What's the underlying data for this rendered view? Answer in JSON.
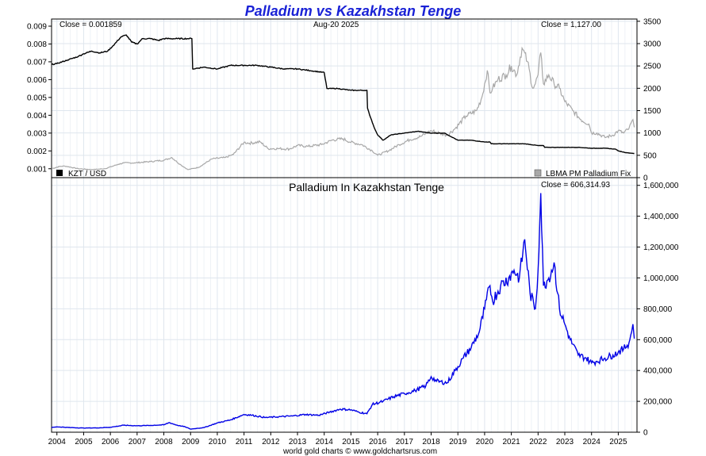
{
  "title": "Palladium vs Kazakhstan Tenge",
  "footer": "world gold charts © www.goldchartsrus.com",
  "colors": {
    "title": "#1a22d6",
    "ratio_line": "#000000",
    "usd_line": "#a8a8a8",
    "kzt_line": "#0000e6",
    "grid": "#dfe6ee",
    "frame": "#000000"
  },
  "chart_data": [
    {
      "type": "line",
      "title": "",
      "date_label": "Aug-20  2025",
      "left_close_label": "Close = 0.001859",
      "right_close_label": "Close = 1,127.00",
      "x_ticks": [
        "2004",
        "2005",
        "2006",
        "2007",
        "2008",
        "2009",
        "2010",
        "2011",
        "2012",
        "2013",
        "2014",
        "2015",
        "2016",
        "2017",
        "2018",
        "2019",
        "2020",
        "2021",
        "2022",
        "2023",
        "2024",
        "2025"
      ],
      "xlim": [
        2003.8,
        2025.7
      ],
      "left_axis": {
        "ylim": [
          0.0005,
          0.0094
        ],
        "ticks": [
          0.001,
          0.002,
          0.003,
          0.004,
          0.005,
          0.006,
          0.007,
          0.008,
          0.009
        ],
        "tick_labels": [
          "0.001",
          "0.002",
          "0.003",
          "0.004",
          "0.005",
          "0.006",
          "0.007",
          "0.008",
          "0.009"
        ]
      },
      "right_axis": {
        "ylim": [
          0,
          3550
        ],
        "ticks": [
          0,
          500,
          1000,
          1500,
          2000,
          2500,
          3000,
          3500
        ],
        "tick_labels": [
          "0",
          "500",
          "1000",
          "1500",
          "2000",
          "2500",
          "3000",
          "3500"
        ]
      },
      "legend": {
        "placement": "bottom",
        "left_label": "KZT / USD",
        "right_label": "LBMA PM Palladium Fix"
      },
      "series": [
        {
          "name": "KZT / USD",
          "axis": "left",
          "x": [
            2003.8,
            2004.0,
            2004.4,
            2004.8,
            2005.0,
            2005.3,
            2005.6,
            2005.9,
            2006.1,
            2006.4,
            2006.6,
            2006.8,
            2007.0,
            2007.2,
            2007.5,
            2007.8,
            2008.0,
            2008.5,
            2008.9,
            2009.05,
            2009.08,
            2009.5,
            2010.0,
            2010.5,
            2011.0,
            2011.5,
            2012.0,
            2012.5,
            2013.0,
            2013.5,
            2014.0,
            2014.1,
            2014.12,
            2014.5,
            2015.0,
            2015.6,
            2015.62,
            2015.7,
            2015.9,
            2016.0,
            2016.2,
            2016.5,
            2017.0,
            2017.5,
            2018.0,
            2018.5,
            2019.0,
            2019.5,
            2020.0,
            2020.2,
            2020.25,
            2020.5,
            2021.0,
            2021.5,
            2022.0,
            2022.2,
            2022.25,
            2022.5,
            2023.0,
            2023.5,
            2024.0,
            2024.5,
            2024.9,
            2025.0,
            2025.3,
            2025.6
          ],
          "values": [
            0.00685,
            0.0069,
            0.0071,
            0.0073,
            0.00745,
            0.0076,
            0.0075,
            0.0076,
            0.0079,
            0.0084,
            0.0085,
            0.0081,
            0.008,
            0.0083,
            0.0083,
            0.0082,
            0.0083,
            0.0083,
            0.0083,
            0.0083,
            0.0066,
            0.0067,
            0.0066,
            0.0068,
            0.0068,
            0.0068,
            0.0067,
            0.0066,
            0.0066,
            0.0065,
            0.0064,
            0.0055,
            0.0055,
            0.0055,
            0.0054,
            0.0054,
            0.0044,
            0.004,
            0.0032,
            0.0029,
            0.0026,
            0.0029,
            0.003,
            0.0031,
            0.003,
            0.003,
            0.0026,
            0.0026,
            0.0025,
            0.0025,
            0.0024,
            0.0024,
            0.0024,
            0.0024,
            0.0023,
            0.0023,
            0.0022,
            0.0022,
            0.0022,
            0.0022,
            0.00215,
            0.00215,
            0.0021,
            0.002,
            0.0019,
            0.001859
          ]
        },
        {
          "name": "LBMA PM Palladium Fix",
          "axis": "right",
          "x": [
            2003.8,
            2004.1,
            2004.3,
            2004.8,
            2005.3,
            2005.8,
            2006.3,
            2006.5,
            2006.9,
            2007.5,
            2008.0,
            2008.3,
            2008.6,
            2008.9,
            2009.3,
            2009.8,
            2010.3,
            2010.6,
            2011.0,
            2011.2,
            2011.6,
            2011.9,
            2012.3,
            2012.7,
            2013.0,
            2013.4,
            2013.9,
            2014.3,
            2014.7,
            2015.0,
            2015.4,
            2015.8,
            2016.0,
            2016.4,
            2016.8,
            2017.2,
            2017.6,
            2018.0,
            2018.3,
            2018.6,
            2018.9,
            2019.3,
            2019.7,
            2019.9,
            2020.1,
            2020.2,
            2020.3,
            2020.5,
            2020.8,
            2021.0,
            2021.2,
            2021.4,
            2021.6,
            2021.8,
            2021.9,
            2022.0,
            2022.1,
            2022.2,
            2022.4,
            2022.6,
            2022.8,
            2023.0,
            2023.3,
            2023.6,
            2023.9,
            2024.0,
            2024.2,
            2024.5,
            2024.8,
            2025.0,
            2025.2,
            2025.4,
            2025.55,
            2025.6
          ],
          "values": [
            200,
            250,
            260,
            200,
            180,
            200,
            300,
            330,
            330,
            360,
            390,
            450,
            300,
            180,
            230,
            420,
            450,
            520,
            790,
            770,
            800,
            650,
            650,
            640,
            720,
            700,
            740,
            840,
            870,
            790,
            740,
            600,
            500,
            600,
            740,
            850,
            920,
            1050,
            1000,
            950,
            1100,
            1380,
            1500,
            1800,
            2400,
            1900,
            2000,
            2200,
            2300,
            2500,
            2300,
            2900,
            2600,
            2000,
            2100,
            2300,
            2800,
            2100,
            2300,
            2100,
            2000,
            1700,
            1500,
            1300,
            1200,
            1000,
            1000,
            900,
            950,
            1050,
            1000,
            1100,
            1300,
            1127
          ]
        }
      ]
    },
    {
      "type": "line",
      "title": "Palladium In Kazakhstan Tenge",
      "close_label": "Close = 606,314.93",
      "xlim": [
        2003.8,
        2025.7
      ],
      "ylim": [
        0,
        1650000
      ],
      "y_ticks": [
        0,
        200000,
        400000,
        600000,
        800000,
        1000000,
        1200000,
        1400000,
        1600000
      ],
      "y_tick_labels": [
        "0",
        "200,000",
        "400,000",
        "600,000",
        "800,000",
        "1,000,000",
        "1,200,000",
        "1,400,000",
        "1,600,000"
      ],
      "x_ticks": [
        "2004",
        "2005",
        "2006",
        "2007",
        "2008",
        "2009",
        "2010",
        "2011",
        "2012",
        "2013",
        "2014",
        "2015",
        "2016",
        "2017",
        "2018",
        "2019",
        "2020",
        "2021",
        "2022",
        "2023",
        "2024",
        "2025"
      ],
      "series": [
        {
          "name": "Palladium In Kazakhstan Tenge",
          "x": [
            2003.8,
            2004.0,
            2004.5,
            2005.0,
            2005.5,
            2006.0,
            2006.5,
            2007.0,
            2007.5,
            2008.0,
            2008.2,
            2008.5,
            2008.8,
            2009.0,
            2009.5,
            2010.0,
            2010.5,
            2011.0,
            2011.3,
            2011.8,
            2012.3,
            2012.8,
            2013.3,
            2013.8,
            2014.2,
            2014.6,
            2015.0,
            2015.3,
            2015.6,
            2015.8,
            2016.2,
            2016.6,
            2017.0,
            2017.4,
            2017.8,
            2018.0,
            2018.2,
            2018.6,
            2018.9,
            2019.2,
            2019.5,
            2019.8,
            2020.0,
            2020.2,
            2020.3,
            2020.6,
            2020.9,
            2021.1,
            2021.3,
            2021.5,
            2021.7,
            2021.9,
            2022.0,
            2022.1,
            2022.2,
            2022.4,
            2022.6,
            2022.8,
            2023.0,
            2023.2,
            2023.5,
            2023.8,
            2024.0,
            2024.2,
            2024.5,
            2024.8,
            2025.0,
            2025.2,
            2025.4,
            2025.5,
            2025.55,
            2025.6
          ],
          "values": [
            30000,
            35000,
            30000,
            27000,
            28000,
            32000,
            45000,
            42000,
            44000,
            48000,
            62000,
            45000,
            35000,
            20000,
            30000,
            60000,
            80000,
            115000,
            110000,
            95000,
            100000,
            105000,
            115000,
            110000,
            130000,
            150000,
            145000,
            130000,
            120000,
            180000,
            200000,
            230000,
            250000,
            270000,
            300000,
            360000,
            330000,
            320000,
            400000,
            480000,
            550000,
            650000,
            800000,
            950000,
            850000,
            950000,
            1000000,
            1050000,
            1000000,
            1250000,
            900000,
            800000,
            1050000,
            1550000,
            950000,
            1000000,
            1100000,
            800000,
            700000,
            600000,
            500000,
            480000,
            450000,
            460000,
            480000,
            500000,
            520000,
            540000,
            580000,
            650000,
            700000,
            606315
          ]
        }
      ]
    }
  ]
}
